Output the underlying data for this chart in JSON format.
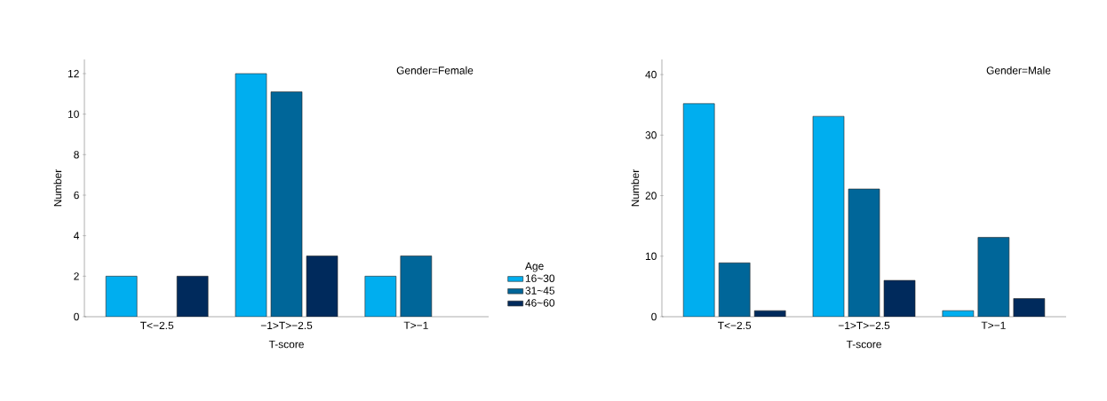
{
  "chart_data": [
    {
      "type": "bar",
      "annotations": [
        "Gender=Female"
      ],
      "xlabel": "T-score",
      "ylabel": "Number",
      "categories": [
        "T<−2.5",
        "−1>T>−2.5",
        "T>−1"
      ],
      "series": [
        {
          "name": "16~30",
          "color": "#00aeef",
          "values": [
            2,
            12,
            2
          ]
        },
        {
          "name": "31~45",
          "color": "#006699",
          "values": [
            null,
            11.1,
            3
          ]
        },
        {
          "name": "46~60",
          "color": "#002a5c",
          "values": [
            2,
            3,
            null
          ]
        }
      ],
      "ylim": [
        0,
        12.7
      ],
      "yticks": [
        0,
        2,
        4,
        6,
        8,
        10,
        12
      ],
      "legend": "right",
      "legend_title": "Age"
    },
    {
      "type": "bar",
      "annotations": [
        "Gender=Male"
      ],
      "xlabel": "T-score",
      "ylabel": "Number",
      "categories": [
        "T<−2.5",
        "−1>T>−2.5",
        "T>−1"
      ],
      "series": [
        {
          "color": "#00aeef",
          "values": [
            35.2,
            33.1,
            1
          ]
        },
        {
          "color": "#006699",
          "values": [
            8.9,
            21.1,
            13.1
          ]
        },
        {
          "color": "#002a5c",
          "values": [
            1,
            6,
            3
          ]
        }
      ],
      "ylim": [
        0,
        42.5
      ],
      "yticks": [
        0,
        10,
        20,
        30,
        40
      ]
    }
  ]
}
